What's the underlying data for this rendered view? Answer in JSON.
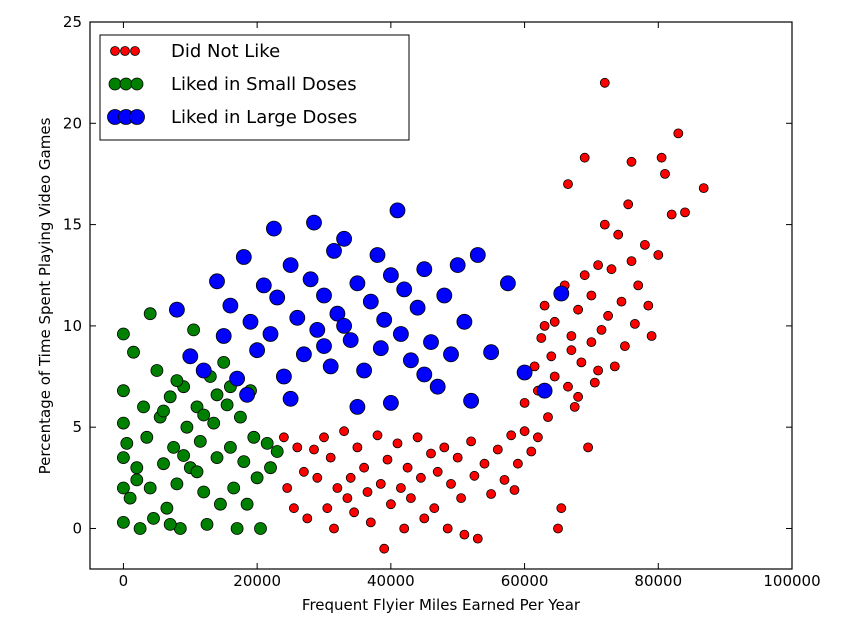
{
  "chart_data": {
    "type": "scatter",
    "title": "",
    "xlabel": "Frequent Flyier Miles Earned Per Year",
    "ylabel": "Percentage of Time Spent Playing Video Games",
    "xlim": [
      -5000,
      100000
    ],
    "ylim": [
      -2,
      25
    ],
    "x_ticks": [
      0,
      20000,
      40000,
      60000,
      80000,
      100000
    ],
    "x_tick_labels": [
      "0",
      "20000",
      "40000",
      "60000",
      "80000",
      "100000"
    ],
    "y_ticks": [
      0,
      5,
      10,
      15,
      20,
      25
    ],
    "y_tick_labels": [
      "0",
      "5",
      "10",
      "15",
      "20",
      "25"
    ],
    "grid": false,
    "legend_position": "top-left",
    "series": [
      {
        "name": "Did Not Like",
        "color": "#ff0000",
        "points": [
          [
            24000,
            4.5
          ],
          [
            24500,
            2.0
          ],
          [
            25500,
            1.0
          ],
          [
            26000,
            4.0
          ],
          [
            27000,
            2.8
          ],
          [
            27500,
            0.5
          ],
          [
            28500,
            3.9
          ],
          [
            29000,
            2.5
          ],
          [
            30000,
            4.5
          ],
          [
            30500,
            1.0
          ],
          [
            31000,
            3.5
          ],
          [
            31500,
            0.0
          ],
          [
            32000,
            2.0
          ],
          [
            33000,
            4.8
          ],
          [
            33500,
            1.5
          ],
          [
            34000,
            2.5
          ],
          [
            34500,
            0.8
          ],
          [
            35000,
            4.0
          ],
          [
            36000,
            3.0
          ],
          [
            36500,
            1.8
          ],
          [
            37000,
            0.3
          ],
          [
            38000,
            4.6
          ],
          [
            38500,
            2.2
          ],
          [
            39000,
            -1.0
          ],
          [
            39500,
            3.4
          ],
          [
            40000,
            1.2
          ],
          [
            41000,
            4.2
          ],
          [
            41500,
            2.0
          ],
          [
            42000,
            0.0
          ],
          [
            42500,
            3.0
          ],
          [
            43000,
            1.5
          ],
          [
            44000,
            4.5
          ],
          [
            44500,
            2.5
          ],
          [
            45000,
            0.5
          ],
          [
            46000,
            3.7
          ],
          [
            46500,
            1.0
          ],
          [
            47000,
            2.8
          ],
          [
            48000,
            4.0
          ],
          [
            48500,
            0.0
          ],
          [
            49000,
            2.2
          ],
          [
            50000,
            3.5
          ],
          [
            50500,
            1.5
          ],
          [
            51000,
            -0.3
          ],
          [
            52000,
            4.3
          ],
          [
            52500,
            2.6
          ],
          [
            53000,
            -0.5
          ],
          [
            54000,
            3.2
          ],
          [
            55000,
            1.7
          ],
          [
            56000,
            3.9
          ],
          [
            57000,
            2.4
          ],
          [
            58000,
            4.6
          ],
          [
            58500,
            1.9
          ],
          [
            59000,
            3.2
          ],
          [
            60000,
            4.8
          ],
          [
            61000,
            3.8
          ],
          [
            62000,
            6.8
          ],
          [
            62500,
            9.4
          ],
          [
            63000,
            11.0
          ],
          [
            63500,
            5.5
          ],
          [
            64000,
            8.5
          ],
          [
            64500,
            10.2
          ],
          [
            65000,
            0.0
          ],
          [
            65500,
            1.0
          ],
          [
            66000,
            12.0
          ],
          [
            66500,
            7.0
          ],
          [
            67000,
            9.5
          ],
          [
            67500,
            6.0
          ],
          [
            68000,
            10.8
          ],
          [
            68500,
            8.2
          ],
          [
            69000,
            12.5
          ],
          [
            69500,
            4.0
          ],
          [
            70000,
            11.5
          ],
          [
            70500,
            7.2
          ],
          [
            71000,
            13.0
          ],
          [
            71500,
            9.8
          ],
          [
            72000,
            15.0
          ],
          [
            72500,
            10.5
          ],
          [
            73000,
            12.8
          ],
          [
            73500,
            8.0
          ],
          [
            74000,
            14.5
          ],
          [
            74500,
            11.2
          ],
          [
            75000,
            9.0
          ],
          [
            75500,
            16.0
          ],
          [
            76000,
            13.2
          ],
          [
            76500,
            10.1
          ],
          [
            77000,
            12.0
          ],
          [
            78000,
            14.0
          ],
          [
            78500,
            11.0
          ],
          [
            79000,
            9.5
          ],
          [
            80000,
            13.5
          ],
          [
            80500,
            18.3
          ],
          [
            81000,
            17.5
          ],
          [
            82000,
            15.5
          ],
          [
            83000,
            19.5
          ],
          [
            84000,
            15.6
          ],
          [
            86800,
            16.8
          ],
          [
            72000,
            22.0
          ],
          [
            69000,
            18.3
          ],
          [
            66500,
            17.0
          ],
          [
            76000,
            18.1
          ],
          [
            60000,
            6.2
          ],
          [
            62000,
            4.5
          ],
          [
            61500,
            8.0
          ],
          [
            63000,
            10.0
          ],
          [
            64500,
            7.5
          ],
          [
            65500,
            11.7
          ],
          [
            67000,
            8.8
          ],
          [
            68000,
            6.5
          ],
          [
            70000,
            9.2
          ],
          [
            71000,
            7.8
          ]
        ]
      },
      {
        "name": "Liked in Small Doses",
        "color": "#008000",
        "points": [
          [
            0,
            9.6
          ],
          [
            0,
            6.8
          ],
          [
            0,
            5.2
          ],
          [
            0,
            3.5
          ],
          [
            0,
            2.0
          ],
          [
            0,
            0.3
          ],
          [
            500,
            4.2
          ],
          [
            1000,
            1.5
          ],
          [
            1500,
            8.7
          ],
          [
            2000,
            3.0
          ],
          [
            2500,
            0.0
          ],
          [
            3000,
            6.0
          ],
          [
            3500,
            4.5
          ],
          [
            4000,
            2.0
          ],
          [
            4500,
            0.5
          ],
          [
            5000,
            7.8
          ],
          [
            5500,
            5.5
          ],
          [
            6000,
            3.2
          ],
          [
            6500,
            1.0
          ],
          [
            7000,
            6.5
          ],
          [
            7500,
            4.0
          ],
          [
            8000,
            2.2
          ],
          [
            8500,
            0.0
          ],
          [
            9000,
            7.0
          ],
          [
            9500,
            5.0
          ],
          [
            10000,
            3.0
          ],
          [
            10500,
            9.8
          ],
          [
            11000,
            6.0
          ],
          [
            11500,
            4.3
          ],
          [
            12000,
            1.8
          ],
          [
            12500,
            0.2
          ],
          [
            13000,
            7.5
          ],
          [
            13500,
            5.2
          ],
          [
            14000,
            3.5
          ],
          [
            14500,
            1.2
          ],
          [
            15000,
            8.2
          ],
          [
            15500,
            6.1
          ],
          [
            16000,
            4.0
          ],
          [
            16500,
            2.0
          ],
          [
            17000,
            0.0
          ],
          [
            17500,
            5.5
          ],
          [
            18000,
            3.3
          ],
          [
            18500,
            1.2
          ],
          [
            19000,
            6.8
          ],
          [
            19500,
            4.5
          ],
          [
            20000,
            2.5
          ],
          [
            20500,
            0.0
          ],
          [
            21500,
            4.2
          ],
          [
            22000,
            3.0
          ],
          [
            23000,
            3.8
          ],
          [
            4000,
            10.6
          ],
          [
            8000,
            7.3
          ],
          [
            11000,
            2.8
          ],
          [
            14000,
            6.6
          ],
          [
            9000,
            3.6
          ],
          [
            6000,
            5.8
          ],
          [
            2000,
            2.4
          ],
          [
            7000,
            0.2
          ],
          [
            12000,
            5.6
          ],
          [
            16000,
            7.0
          ]
        ]
      },
      {
        "name": "Liked in Large Doses",
        "color": "#0000ff",
        "points": [
          [
            8000,
            10.8
          ],
          [
            10000,
            8.5
          ],
          [
            12000,
            7.8
          ],
          [
            14000,
            12.2
          ],
          [
            15000,
            9.5
          ],
          [
            16000,
            11.0
          ],
          [
            17000,
            7.4
          ],
          [
            18000,
            13.4
          ],
          [
            18500,
            6.6
          ],
          [
            19000,
            10.2
          ],
          [
            20000,
            8.8
          ],
          [
            21000,
            12.0
          ],
          [
            22000,
            9.6
          ],
          [
            22500,
            14.8
          ],
          [
            23000,
            11.4
          ],
          [
            24000,
            7.5
          ],
          [
            25000,
            13.0
          ],
          [
            26000,
            10.4
          ],
          [
            27000,
            8.6
          ],
          [
            28000,
            12.3
          ],
          [
            28500,
            15.1
          ],
          [
            29000,
            9.8
          ],
          [
            30000,
            11.5
          ],
          [
            31000,
            8.0
          ],
          [
            31500,
            13.7
          ],
          [
            32000,
            10.6
          ],
          [
            33000,
            14.3
          ],
          [
            34000,
            9.3
          ],
          [
            35000,
            12.1
          ],
          [
            36000,
            7.8
          ],
          [
            37000,
            11.2
          ],
          [
            38000,
            13.5
          ],
          [
            38500,
            8.9
          ],
          [
            39000,
            10.3
          ],
          [
            40000,
            12.5
          ],
          [
            41000,
            15.7
          ],
          [
            41500,
            9.6
          ],
          [
            42000,
            11.8
          ],
          [
            43000,
            8.3
          ],
          [
            44000,
            10.9
          ],
          [
            45000,
            12.8
          ],
          [
            46000,
            9.2
          ],
          [
            47000,
            7.0
          ],
          [
            48000,
            11.5
          ],
          [
            49000,
            8.6
          ],
          [
            50000,
            13.0
          ],
          [
            51000,
            10.2
          ],
          [
            52000,
            6.3
          ],
          [
            53000,
            13.5
          ],
          [
            55000,
            8.7
          ],
          [
            57500,
            12.1
          ],
          [
            60000,
            7.7
          ],
          [
            63000,
            6.8
          ],
          [
            65500,
            11.6
          ],
          [
            25000,
            6.4
          ],
          [
            30000,
            9.0
          ],
          [
            35000,
            6.0
          ],
          [
            40000,
            6.2
          ],
          [
            45000,
            7.6
          ],
          [
            33000,
            10.0
          ]
        ]
      }
    ]
  }
}
